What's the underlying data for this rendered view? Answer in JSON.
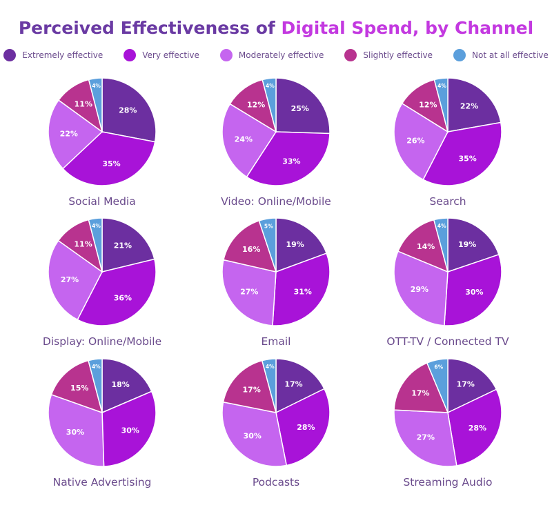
{
  "title_part1": "Perceived Effectiveness of",
  "title_part2": "Digital Spend, by Channel",
  "colors": {
    "title": "#6a3aa3",
    "title_highlight": "#c339e0",
    "label": "#6a4a8c"
  },
  "chart_data": {
    "type": "pie",
    "title": "Perceived Effectiveness of Digital Spend, by Channel",
    "legend_position": "top",
    "series": [
      {
        "name": "Extremely effective",
        "color": "#6c2fa0"
      },
      {
        "name": "Very effective",
        "color": "#a813d8"
      },
      {
        "name": "Moderately effective",
        "color": "#c565ef"
      },
      {
        "name": "Slightly effective",
        "color": "#b8338f"
      },
      {
        "name": "Not at all effective",
        "color": "#5b9fdc"
      }
    ],
    "pies": [
      {
        "name": "Social Media",
        "values": [
          28,
          35,
          22,
          11,
          4
        ]
      },
      {
        "name": "Video: Online/Mobile",
        "values": [
          25,
          33,
          24,
          12,
          4
        ]
      },
      {
        "name": "Search",
        "values": [
          22,
          35,
          26,
          12,
          4
        ]
      },
      {
        "name": "Display: Online/Mobile",
        "values": [
          21,
          36,
          27,
          11,
          4
        ]
      },
      {
        "name": "Email",
        "values": [
          19,
          31,
          27,
          16,
          5
        ]
      },
      {
        "name": "OTT-TV / Connected TV",
        "values": [
          19,
          30,
          29,
          14,
          4
        ]
      },
      {
        "name": "Native Advertising",
        "values": [
          18,
          30,
          30,
          15,
          4
        ]
      },
      {
        "name": "Podcasts",
        "values": [
          17,
          28,
          30,
          17,
          4
        ]
      },
      {
        "name": "Streaming Audio",
        "values": [
          17,
          28,
          27,
          17,
          6
        ]
      }
    ]
  }
}
